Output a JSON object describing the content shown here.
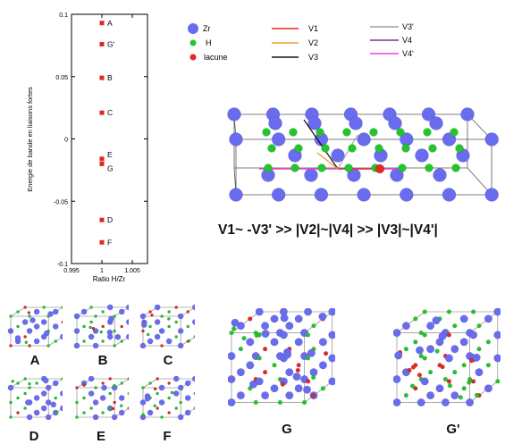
{
  "chart_data": {
    "type": "scatter",
    "xlabel": "Ratio H/Zr",
    "ylabel": "Energie de bande en liaisons fortes",
    "xlim": [
      0.995,
      1.0075
    ],
    "ylim": [
      -0.1,
      0.1
    ],
    "x_ticks": [
      "0.995",
      "1",
      "1.005"
    ],
    "y_ticks": [
      "0.1",
      "0.05",
      "0",
      "-0.05",
      "-0.1"
    ],
    "points": [
      {
        "label": "A",
        "x": 1.0,
        "y": 0.093
      },
      {
        "label": "G'",
        "x": 1.0,
        "y": 0.076
      },
      {
        "label": "B",
        "x": 1.0,
        "y": 0.049
      },
      {
        "label": "C",
        "x": 1.0,
        "y": 0.021
      },
      {
        "label": "E",
        "x": 1.0,
        "y": -0.016
      },
      {
        "label": "G",
        "x": 1.0,
        "y": -0.02
      },
      {
        "label": "D",
        "x": 1.0,
        "y": -0.065
      },
      {
        "label": "F",
        "x": 1.0,
        "y": -0.083
      }
    ],
    "marker_color": "#e0281e"
  },
  "legend": {
    "atoms": [
      {
        "label": "Zr",
        "color": "#6a6cf0"
      },
      {
        "label": "H",
        "color": "#22c62a"
      },
      {
        "label": "lacune",
        "color": "#e02a22"
      }
    ],
    "bonds": [
      {
        "label": "V1",
        "color": "#e8261c"
      },
      {
        "label": "V2",
        "color": "#f09a2a"
      },
      {
        "label": "V3",
        "color": "#111111"
      },
      {
        "label": "V3'",
        "color": "#a0a0a0"
      },
      {
        "label": "V4",
        "color": "#8b2a9a"
      },
      {
        "label": "V4'",
        "color": "#ee3fd2"
      }
    ]
  },
  "relation": "V1~ -V3' >> |V2|~|V4| >> |V3|~|V4'|",
  "structures": [
    "A",
    "B",
    "C",
    "D",
    "E",
    "F",
    "G",
    "G'"
  ]
}
